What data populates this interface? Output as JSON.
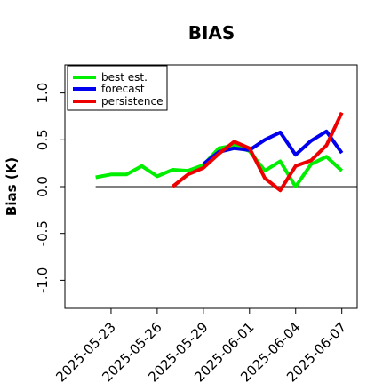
{
  "chart_data": {
    "type": "line",
    "title": "BIAS",
    "xlabel": "",
    "ylabel": "Bias (K)",
    "ylim": [
      -1.3,
      1.3
    ],
    "yticks": [
      -1.0,
      -0.5,
      0.0,
      0.5,
      1.0
    ],
    "ytick_labels": [
      "-1.0",
      "-0.5",
      "0.0",
      "0.5",
      "1.0"
    ],
    "xrange": [
      "2025-05-20",
      "2025-06-08"
    ],
    "xticks": [
      "2025-05-23",
      "2025-05-26",
      "2025-05-29",
      "2025-06-01",
      "2025-06-04",
      "2025-06-07"
    ],
    "xtick_labels": [
      "2025-05-23",
      "2025-05-26",
      "2025-05-29",
      "2025-06-01",
      "2025-06-04",
      "2025-06-07"
    ],
    "xtick_colors": [
      "#000000",
      "#000000",
      "#228b22",
      "#000000",
      "#000000",
      "#000000"
    ],
    "zero_line": true,
    "grid": false,
    "legend_position": "top-left",
    "series": [
      {
        "name": "best est.",
        "color": "#00ee00",
        "x": [
          "2025-05-22",
          "2025-05-23",
          "2025-05-24",
          "2025-05-25",
          "2025-05-26",
          "2025-05-27",
          "2025-05-28",
          "2025-05-29",
          "2025-05-30",
          "2025-05-31",
          "2025-06-01",
          "2025-06-02",
          "2025-06-03",
          "2025-06-04",
          "2025-06-05",
          "2025-06-06",
          "2025-06-07"
        ],
        "y": [
          0.1,
          0.13,
          0.13,
          0.22,
          0.11,
          0.18,
          0.17,
          0.23,
          0.41,
          0.44,
          0.38,
          0.17,
          0.27,
          0.0,
          0.24,
          0.32,
          0.17
        ]
      },
      {
        "name": "forecast",
        "color": "#0000ee",
        "x": [
          "2025-05-29",
          "2025-05-30",
          "2025-05-31",
          "2025-06-01",
          "2025-06-02",
          "2025-06-03",
          "2025-06-04",
          "2025-06-05",
          "2025-06-06",
          "2025-06-07"
        ],
        "y": [
          0.24,
          0.37,
          0.41,
          0.39,
          0.5,
          0.58,
          0.34,
          0.49,
          0.59,
          0.36
        ]
      },
      {
        "name": "persistence",
        "color": "#ee0000",
        "x": [
          "2025-05-27",
          "2025-05-28",
          "2025-05-29",
          "2025-05-30",
          "2025-05-31",
          "2025-06-01",
          "2025-06-02",
          "2025-06-03",
          "2025-06-04",
          "2025-06-05",
          "2025-06-06",
          "2025-06-07"
        ],
        "y": [
          0.0,
          0.13,
          0.2,
          0.35,
          0.48,
          0.41,
          0.09,
          -0.04,
          0.22,
          0.28,
          0.44,
          0.79
        ]
      }
    ]
  }
}
